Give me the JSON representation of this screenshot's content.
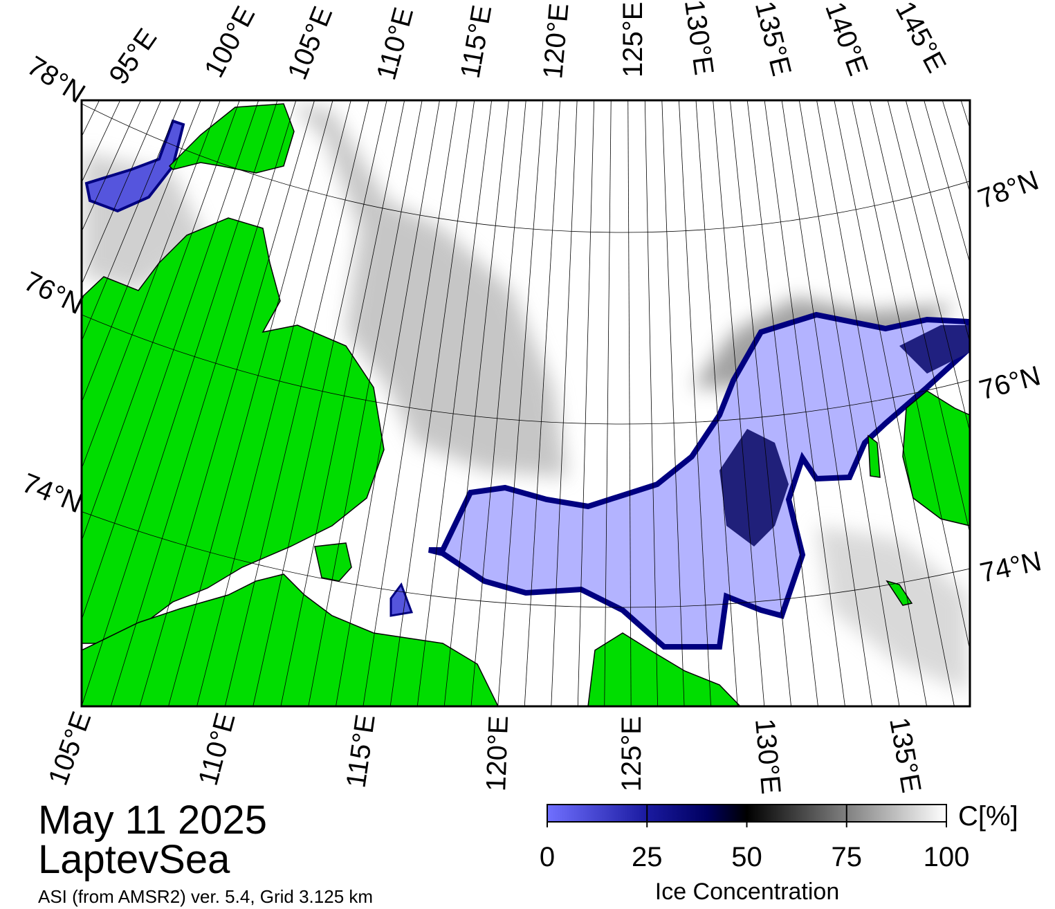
{
  "header": {
    "date": "May 11 2025",
    "region": "LaptevSea",
    "source": "ASI (from AMSR2) ver. 5.4,  Grid 3.125 km"
  },
  "map": {
    "top_labels": [
      "95°E",
      "100°E",
      "105°E",
      "110°E",
      "115°E",
      "120°E",
      "125°E",
      "130°E",
      "135°E",
      "140°E",
      "145°E"
    ],
    "left_labels": [
      "78°N",
      "76°N",
      "74°N"
    ],
    "right_labels": [
      "78°N",
      "76°N",
      "74°N"
    ],
    "bottom_labels": [
      "105°E",
      "110°E",
      "115°E",
      "120°E",
      "125°E",
      "130°E",
      "135°E"
    ]
  },
  "colorbar": {
    "unit": "C[%]",
    "label": "Ice Concentration",
    "range": [
      0,
      100
    ],
    "ticks": [
      0,
      25,
      50,
      75,
      100
    ]
  }
}
